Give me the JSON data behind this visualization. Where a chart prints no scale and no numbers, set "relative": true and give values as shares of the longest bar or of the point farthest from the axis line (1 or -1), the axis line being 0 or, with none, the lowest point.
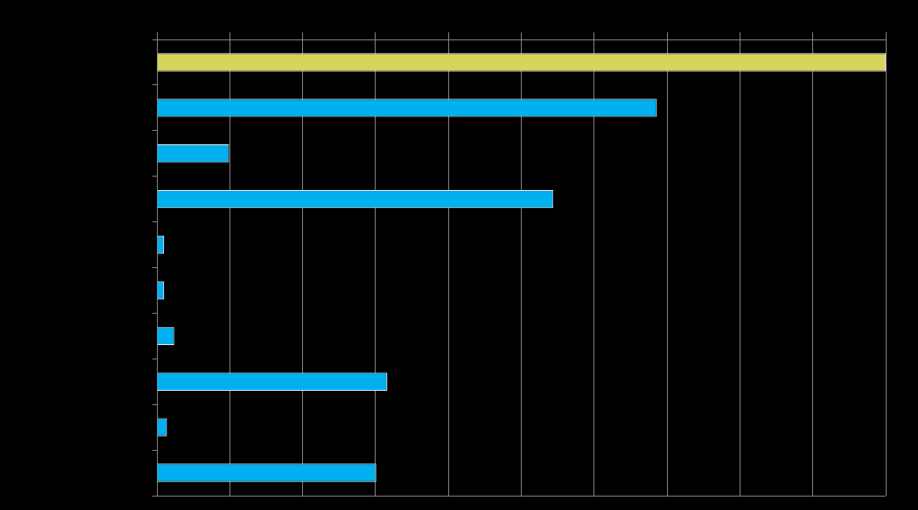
{
  "chart_data": {
    "type": "bar",
    "orientation": "horizontal",
    "relative": true,
    "grid": "x",
    "legend": false,
    "tick_labels": false,
    "categories": [
      null,
      null,
      null,
      null,
      null,
      null,
      null,
      null,
      null,
      null
    ],
    "values": [
      1,
      0.686,
      0.099,
      0.544,
      0.01,
      0.01,
      0.024,
      0.316,
      0.014,
      0.301
    ],
    "colors": [
      "#d4d55a",
      "#00b0f0",
      "#00b0f0",
      "#00b0f0",
      "#00b0f0",
      "#00b0f0",
      "#00b0f0",
      "#00b0f0",
      "#00b0f0",
      "#00b0f0"
    ]
  }
}
